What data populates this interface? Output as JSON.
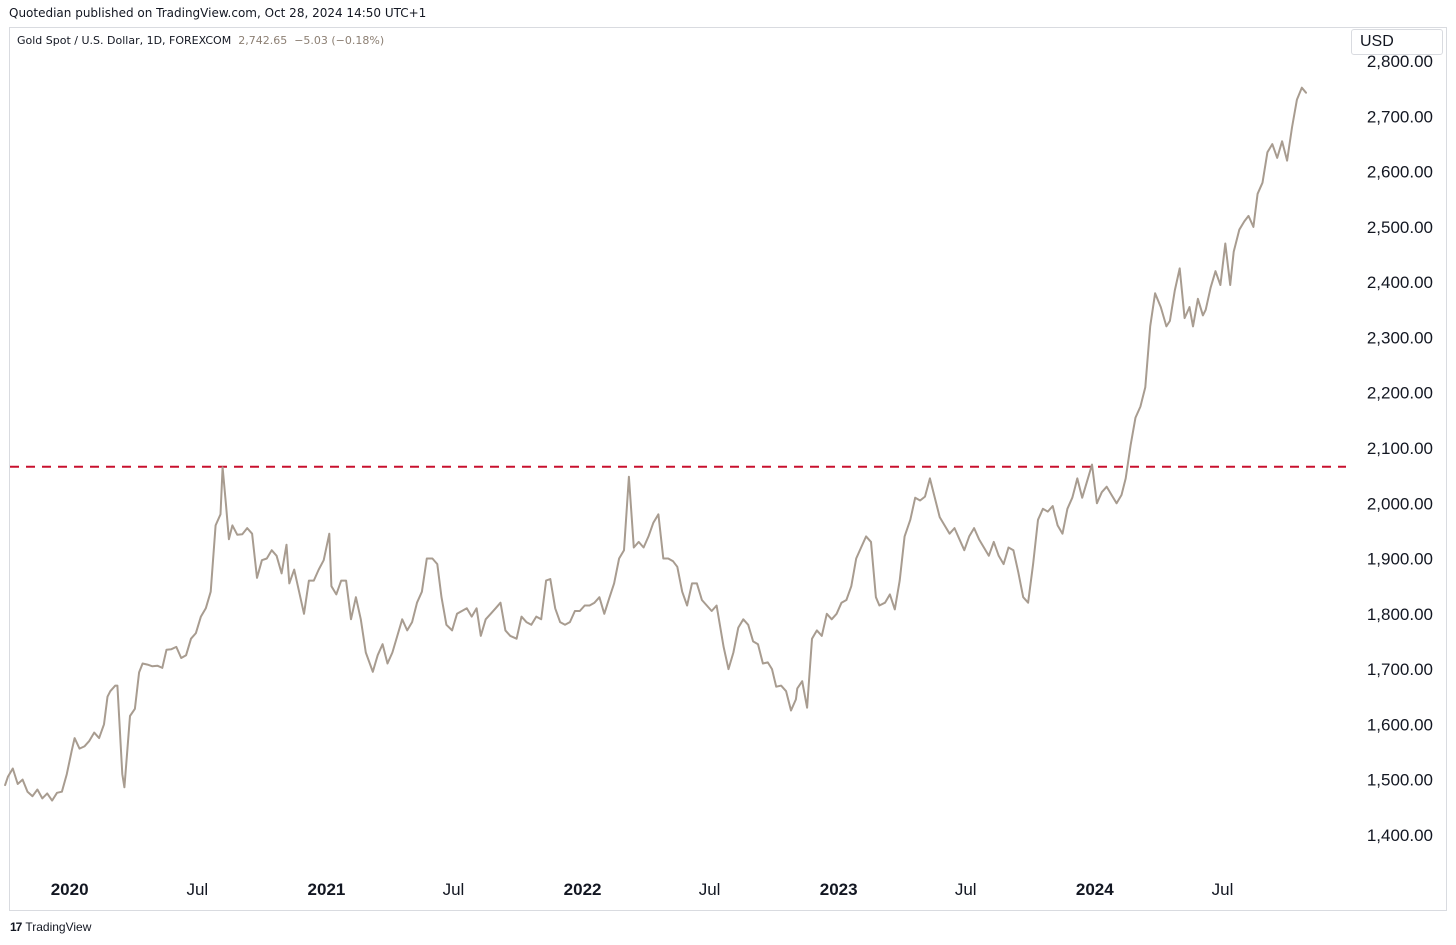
{
  "header": {
    "published_text": "Quotedian published on TradingView.com, Oct 28, 2024 14:50 UTC+1"
  },
  "symbol": {
    "description": "Gold Spot / U.S. Dollar, 1D, FOREXCOM",
    "last": "2,742.65",
    "change": "−5.03 (−0.18%)"
  },
  "currency_label": "USD",
  "footer": {
    "logo_glyph": "17",
    "brand": "TradingView"
  },
  "colors": {
    "price_line": "#a89c90",
    "resistance_line": "#c8102e",
    "grid": "none"
  },
  "chart_data": {
    "type": "line",
    "title": "",
    "xlabel": "",
    "ylabel": "",
    "ylim": [
      1340,
      2860
    ],
    "xlim": [
      "2019-10-08",
      "2024-12-24"
    ],
    "y_ticks": [
      "2,800.00",
      "2,700.00",
      "2,600.00",
      "2,500.00",
      "2,400.00",
      "2,300.00",
      "2,200.00",
      "2,100.00",
      "2,000.00",
      "1,900.00",
      "1,800.00",
      "1,700.00",
      "1,600.00",
      "1,500.00",
      "1,400.00"
    ],
    "x_ticks": [
      {
        "label": "2020",
        "date": "2020-01-01",
        "year": true
      },
      {
        "label": "Jul",
        "date": "2020-07-01",
        "year": false
      },
      {
        "label": "2021",
        "date": "2021-01-01",
        "year": true
      },
      {
        "label": "Jul",
        "date": "2021-07-01",
        "year": false
      },
      {
        "label": "2022",
        "date": "2022-01-01",
        "year": true
      },
      {
        "label": "Jul",
        "date": "2022-07-01",
        "year": false
      },
      {
        "label": "2023",
        "date": "2023-01-01",
        "year": true
      },
      {
        "label": "Jul",
        "date": "2023-07-01",
        "year": false
      },
      {
        "label": "2024",
        "date": "2024-01-01",
        "year": true
      },
      {
        "label": "Jul",
        "date": "2024-07-01",
        "year": false
      }
    ],
    "horizontal_line": {
      "y": 2066,
      "style": "dashed"
    },
    "series": [
      {
        "x": [
          "2019-10-01",
          "2019-10-05",
          "2019-10-12",
          "2019-10-19",
          "2019-10-26",
          "2019-11-02",
          "2019-11-09",
          "2019-11-16",
          "2019-11-23",
          "2019-11-30",
          "2019-12-07",
          "2019-12-14",
          "2019-12-21",
          "2019-12-28",
          "2020-01-04",
          "2020-01-08",
          "2020-01-15",
          "2020-01-22",
          "2020-01-29",
          "2020-02-05",
          "2020-02-12",
          "2020-02-19",
          "2020-02-24",
          "2020-02-28",
          "2020-03-06",
          "2020-03-09",
          "2020-03-16",
          "2020-03-19",
          "2020-03-23",
          "2020-03-27",
          "2020-04-03",
          "2020-04-09",
          "2020-04-14",
          "2020-04-21",
          "2020-04-28",
          "2020-05-05",
          "2020-05-12",
          "2020-05-18",
          "2020-05-25",
          "2020-06-01",
          "2020-06-08",
          "2020-06-15",
          "2020-06-22",
          "2020-06-29",
          "2020-07-06",
          "2020-07-13",
          "2020-07-20",
          "2020-07-27",
          "2020-08-03",
          "2020-08-06",
          "2020-08-11",
          "2020-08-15",
          "2020-08-20",
          "2020-08-27",
          "2020-09-03",
          "2020-09-10",
          "2020-09-17",
          "2020-09-24",
          "2020-10-01",
          "2020-10-08",
          "2020-10-15",
          "2020-10-22",
          "2020-10-29",
          "2020-11-05",
          "2020-11-09",
          "2020-11-16",
          "2020-11-23",
          "2020-11-30",
          "2020-12-07",
          "2020-12-14",
          "2020-12-21",
          "2020-12-28",
          "2021-01-05",
          "2021-01-08",
          "2021-01-15",
          "2021-01-22",
          "2021-01-29",
          "2021-02-05",
          "2021-02-12",
          "2021-02-19",
          "2021-02-26",
          "2021-03-08",
          "2021-03-15",
          "2021-03-22",
          "2021-03-29",
          "2021-04-05",
          "2021-04-12",
          "2021-04-19",
          "2021-04-26",
          "2021-05-03",
          "2021-05-10",
          "2021-05-17",
          "2021-05-24",
          "2021-06-01",
          "2021-06-08",
          "2021-06-14",
          "2021-06-21",
          "2021-06-29",
          "2021-07-06",
          "2021-07-13",
          "2021-07-20",
          "2021-07-27",
          "2021-08-03",
          "2021-08-09",
          "2021-08-16",
          "2021-08-23",
          "2021-08-30",
          "2021-09-06",
          "2021-09-13",
          "2021-09-20",
          "2021-09-29",
          "2021-10-06",
          "2021-10-13",
          "2021-10-20",
          "2021-10-27",
          "2021-11-03",
          "2021-11-10",
          "2021-11-16",
          "2021-11-23",
          "2021-11-30",
          "2021-12-07",
          "2021-12-14",
          "2021-12-21",
          "2021-12-28",
          "2022-01-04",
          "2022-01-11",
          "2022-01-18",
          "2022-01-25",
          "2022-02-01",
          "2022-02-08",
          "2022-02-15",
          "2022-02-22",
          "2022-03-01",
          "2022-03-08",
          "2022-03-15",
          "2022-03-22",
          "2022-03-29",
          "2022-04-05",
          "2022-04-12",
          "2022-04-19",
          "2022-04-26",
          "2022-05-03",
          "2022-05-10",
          "2022-05-16",
          "2022-05-23",
          "2022-05-30",
          "2022-06-06",
          "2022-06-13",
          "2022-06-20",
          "2022-06-27",
          "2022-07-04",
          "2022-07-11",
          "2022-07-21",
          "2022-07-28",
          "2022-08-04",
          "2022-08-11",
          "2022-08-18",
          "2022-08-25",
          "2022-09-01",
          "2022-09-08",
          "2022-09-15",
          "2022-09-22",
          "2022-09-28",
          "2022-10-04",
          "2022-10-11",
          "2022-10-18",
          "2022-10-25",
          "2022-11-01",
          "2022-11-03",
          "2022-11-10",
          "2022-11-17",
          "2022-11-24",
          "2022-12-01",
          "2022-12-08",
          "2022-12-15",
          "2022-12-22",
          "2022-12-29",
          "2023-01-05",
          "2023-01-12",
          "2023-01-19",
          "2023-01-26",
          "2023-02-02",
          "2023-02-09",
          "2023-02-16",
          "2023-02-23",
          "2023-02-28",
          "2023-03-08",
          "2023-03-15",
          "2023-03-22",
          "2023-03-29",
          "2023-04-05",
          "2023-04-13",
          "2023-04-20",
          "2023-04-27",
          "2023-05-04",
          "2023-05-11",
          "2023-05-18",
          "2023-05-25",
          "2023-06-01",
          "2023-06-08",
          "2023-06-15",
          "2023-06-22",
          "2023-06-29",
          "2023-07-06",
          "2023-07-13",
          "2023-07-20",
          "2023-07-27",
          "2023-08-03",
          "2023-08-10",
          "2023-08-17",
          "2023-08-24",
          "2023-08-31",
          "2023-09-07",
          "2023-09-14",
          "2023-09-21",
          "2023-09-28",
          "2023-10-05",
          "2023-10-12",
          "2023-10-19",
          "2023-10-26",
          "2023-11-02",
          "2023-11-09",
          "2023-11-16",
          "2023-11-23",
          "2023-11-30",
          "2023-12-04",
          "2023-12-07",
          "2023-12-14",
          "2023-12-21",
          "2023-12-28",
          "2024-01-04",
          "2024-01-11",
          "2024-01-18",
          "2024-01-25",
          "2024-02-01",
          "2024-02-08",
          "2024-02-14",
          "2024-02-21",
          "2024-02-28",
          "2024-03-06",
          "2024-03-13",
          "2024-03-20",
          "2024-03-27",
          "2024-04-04",
          "2024-04-12",
          "2024-04-17",
          "2024-04-24",
          "2024-05-01",
          "2024-05-08",
          "2024-05-15",
          "2024-05-20",
          "2024-05-27",
          "2024-06-03",
          "2024-06-07",
          "2024-06-14",
          "2024-06-21",
          "2024-06-28",
          "2024-07-05",
          "2024-07-12",
          "2024-07-17",
          "2024-07-25",
          "2024-08-01",
          "2024-08-07",
          "2024-08-14",
          "2024-08-20",
          "2024-08-27",
          "2024-09-03",
          "2024-09-10",
          "2024-09-17",
          "2024-09-24",
          "2024-10-01",
          "2024-10-08",
          "2024-10-15",
          "2024-10-22",
          "2024-10-28"
        ],
        "y": [
          1490,
          1505,
          1520,
          1492,
          1500,
          1478,
          1470,
          1482,
          1466,
          1475,
          1462,
          1476,
          1478,
          1510,
          1552,
          1575,
          1556,
          1560,
          1570,
          1585,
          1575,
          1600,
          1650,
          1660,
          1670,
          1670,
          1510,
          1486,
          1550,
          1615,
          1628,
          1694,
          1710,
          1708,
          1705,
          1706,
          1702,
          1735,
          1736,
          1740,
          1720,
          1725,
          1755,
          1765,
          1795,
          1810,
          1840,
          1960,
          1980,
          2065,
          1995,
          1935,
          1960,
          1943,
          1944,
          1955,
          1945,
          1865,
          1897,
          1900,
          1915,
          1905,
          1873,
          1925,
          1855,
          1880,
          1840,
          1800,
          1860,
          1860,
          1880,
          1897,
          1945,
          1850,
          1835,
          1860,
          1860,
          1790,
          1830,
          1790,
          1730,
          1695,
          1725,
          1745,
          1710,
          1730,
          1760,
          1790,
          1770,
          1785,
          1820,
          1840,
          1900,
          1900,
          1890,
          1830,
          1780,
          1770,
          1800,
          1805,
          1810,
          1795,
          1810,
          1760,
          1790,
          1800,
          1810,
          1820,
          1770,
          1760,
          1755,
          1795,
          1785,
          1780,
          1795,
          1790,
          1860,
          1863,
          1810,
          1785,
          1780,
          1785,
          1805,
          1805,
          1815,
          1815,
          1820,
          1830,
          1800,
          1828,
          1855,
          1900,
          1915,
          2048,
          1920,
          1930,
          1920,
          1940,
          1965,
          1980,
          1900,
          1900,
          1895,
          1885,
          1840,
          1815,
          1855,
          1855,
          1825,
          1815,
          1805,
          1815,
          1740,
          1700,
          1730,
          1775,
          1790,
          1780,
          1750,
          1745,
          1710,
          1712,
          1700,
          1668,
          1670,
          1660,
          1625,
          1645,
          1665,
          1678,
          1630,
          1755,
          1770,
          1760,
          1800,
          1790,
          1800,
          1820,
          1825,
          1850,
          1900,
          1920,
          1940,
          1930,
          1830,
          1815,
          1820,
          1835,
          1808,
          1860,
          1940,
          1970,
          2010,
          2005,
          2012,
          2045,
          2010,
          1975,
          1960,
          1945,
          1955,
          1935,
          1915,
          1940,
          1955,
          1935,
          1920,
          1905,
          1930,
          1905,
          1890,
          1920,
          1915,
          1875,
          1830,
          1820,
          1890,
          1970,
          1990,
          1985,
          1995,
          1960,
          1945,
          1990,
          2010,
          2030,
          2045,
          2010,
          2040,
          2070,
          2000,
          2020,
          2030,
          2015,
          2000,
          2015,
          2045,
          2105,
          2155,
          2175,
          2210,
          2320,
          2380,
          2355,
          2320,
          2330,
          2385,
          2425,
          2335,
          2355,
          2320,
          2370,
          2340,
          2350,
          2390,
          2420,
          2395,
          2470,
          2395,
          2455,
          2495,
          2510,
          2520,
          2500,
          2560,
          2580,
          2635,
          2650,
          2625,
          2655,
          2620,
          2680,
          2730,
          2752,
          2743
        ]
      }
    ]
  }
}
